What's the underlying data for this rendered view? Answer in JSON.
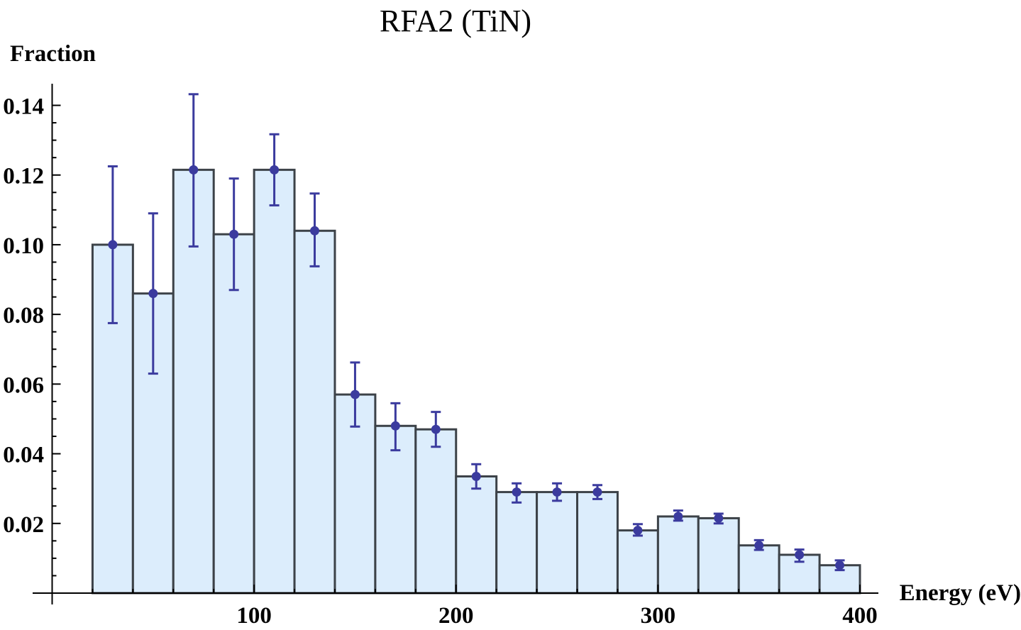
{
  "chart_data": {
    "type": "bar",
    "title": "RFA2 (TiN)",
    "xlabel": "Energy (eV)",
    "ylabel": "Fraction",
    "xlim": [
      0,
      400
    ],
    "ylim": [
      0,
      0.145
    ],
    "x_ticks": [
      100,
      200,
      300,
      400
    ],
    "y_ticks": [
      0.02,
      0.04,
      0.06,
      0.08,
      0.1,
      0.12,
      0.14
    ],
    "y_tick_labels": [
      "0.02",
      "0.04",
      "0.06",
      "0.08",
      "0.10",
      "0.12",
      "0.14"
    ],
    "bin_width": 20,
    "bins": [
      {
        "x_start": 20,
        "x_end": 40,
        "value": 0.1,
        "error_low": 0.0775,
        "error_high": 0.1225
      },
      {
        "x_start": 40,
        "x_end": 60,
        "value": 0.086,
        "error_low": 0.063,
        "error_high": 0.109
      },
      {
        "x_start": 60,
        "x_end": 80,
        "value": 0.1215,
        "error_low": 0.0995,
        "error_high": 0.1432
      },
      {
        "x_start": 80,
        "x_end": 100,
        "value": 0.103,
        "error_low": 0.087,
        "error_high": 0.119
      },
      {
        "x_start": 100,
        "x_end": 120,
        "value": 0.1215,
        "error_low": 0.1113,
        "error_high": 0.1317
      },
      {
        "x_start": 120,
        "x_end": 140,
        "value": 0.104,
        "error_low": 0.0938,
        "error_high": 0.1147
      },
      {
        "x_start": 140,
        "x_end": 160,
        "value": 0.057,
        "error_low": 0.0478,
        "error_high": 0.0662
      },
      {
        "x_start": 160,
        "x_end": 180,
        "value": 0.048,
        "error_low": 0.041,
        "error_high": 0.0545
      },
      {
        "x_start": 180,
        "x_end": 200,
        "value": 0.047,
        "error_low": 0.042,
        "error_high": 0.052
      },
      {
        "x_start": 200,
        "x_end": 220,
        "value": 0.0335,
        "error_low": 0.03,
        "error_high": 0.037
      },
      {
        "x_start": 220,
        "x_end": 240,
        "value": 0.029,
        "error_low": 0.026,
        "error_high": 0.0315
      },
      {
        "x_start": 240,
        "x_end": 260,
        "value": 0.029,
        "error_low": 0.0265,
        "error_high": 0.0315
      },
      {
        "x_start": 260,
        "x_end": 280,
        "value": 0.029,
        "error_low": 0.027,
        "error_high": 0.031
      },
      {
        "x_start": 280,
        "x_end": 300,
        "value": 0.018,
        "error_low": 0.0165,
        "error_high": 0.0198
      },
      {
        "x_start": 300,
        "x_end": 320,
        "value": 0.022,
        "error_low": 0.0208,
        "error_high": 0.0237
      },
      {
        "x_start": 320,
        "x_end": 340,
        "value": 0.0215,
        "error_low": 0.02,
        "error_high": 0.0228
      },
      {
        "x_start": 340,
        "x_end": 360,
        "value": 0.0137,
        "error_low": 0.0124,
        "error_high": 0.0152
      },
      {
        "x_start": 360,
        "x_end": 380,
        "value": 0.011,
        "error_low": 0.009,
        "error_high": 0.0125
      },
      {
        "x_start": 380,
        "x_end": 400,
        "value": 0.008,
        "error_low": 0.0066,
        "error_high": 0.0094
      }
    ],
    "grid": false,
    "bar_fill": "#dcedfc",
    "bar_stroke": "#3c4248",
    "point_color": "#3b3b9e"
  }
}
